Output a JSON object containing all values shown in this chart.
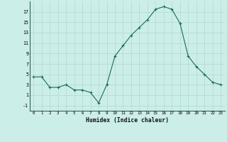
{
  "x": [
    0,
    1,
    2,
    3,
    4,
    5,
    6,
    7,
    8,
    9,
    10,
    11,
    12,
    13,
    14,
    15,
    16,
    17,
    18,
    19,
    20,
    21,
    22,
    23
  ],
  "y": [
    4.5,
    4.5,
    2.5,
    2.5,
    3.0,
    2.0,
    2.0,
    1.5,
    -0.5,
    3.0,
    8.5,
    10.5,
    12.5,
    14.0,
    15.5,
    17.5,
    18.0,
    17.5,
    14.8,
    8.5,
    6.5,
    5.0,
    3.5,
    3.0
  ],
  "xlabel": "Humidex (Indice chaleur)",
  "yticks": [
    -1,
    1,
    3,
    5,
    7,
    9,
    11,
    13,
    15,
    17
  ],
  "xticks": [
    0,
    1,
    2,
    3,
    4,
    5,
    6,
    7,
    8,
    9,
    10,
    11,
    12,
    13,
    14,
    15,
    16,
    17,
    18,
    19,
    20,
    21,
    22,
    23
  ],
  "xlim": [
    -0.5,
    23.5
  ],
  "ylim": [
    -2.0,
    19.0
  ],
  "line_color": "#1a6b5a",
  "bg_color": "#cceee8",
  "grid_color": "#b0d8d0",
  "markersize": 2.5
}
